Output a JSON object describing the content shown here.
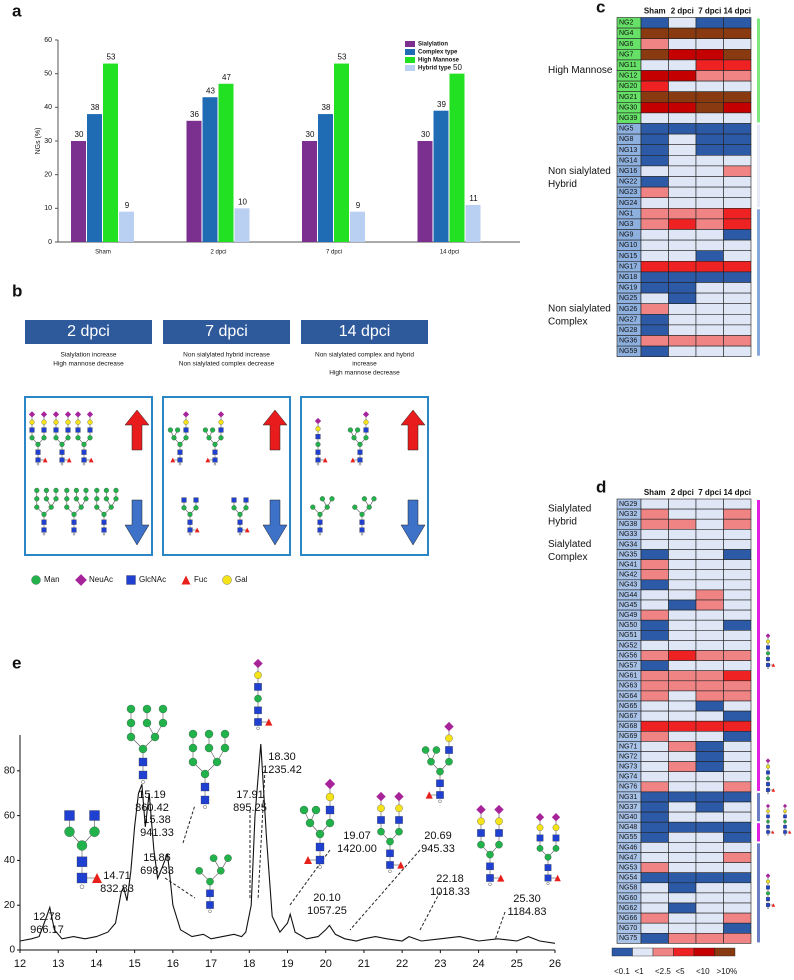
{
  "panel_labels": [
    "a",
    "b",
    "c",
    "d",
    "e"
  ],
  "chart_data": [
    {
      "type": "bar",
      "y_label": "NGs (%)",
      "categories": [
        "Sham",
        "2 dpci",
        "7 dpci",
        "14 dpci"
      ],
      "series": [
        {
          "name": "Sialylation",
          "color": "#7b2f8f",
          "values": [
            30,
            36,
            30,
            30
          ]
        },
        {
          "name": "Complex type",
          "color": "#1f6cb4",
          "values": [
            38,
            43,
            38,
            39
          ]
        },
        {
          "name": "High Mannose",
          "color": "#22e022",
          "values": [
            53,
            47,
            53,
            50
          ]
        },
        {
          "name": "Hybrid type",
          "color": "#b9d0f2",
          "values": [
            9,
            10,
            9,
            11
          ]
        }
      ],
      "ylim": [
        0,
        60
      ],
      "yticks": [
        0,
        10,
        20,
        30,
        40,
        50,
        60
      ]
    },
    {
      "type": "line",
      "color": "#111111",
      "x": [
        12.0,
        12.3,
        12.5,
        12.7,
        12.78,
        12.9,
        13.1,
        13.4,
        13.7,
        14.0,
        14.3,
        14.5,
        14.65,
        14.71,
        14.8,
        14.9,
        15.0,
        15.1,
        15.19,
        15.28,
        15.38,
        15.5,
        15.6,
        15.7,
        15.86,
        16.0,
        16.2,
        16.5,
        16.8,
        17.0,
        17.3,
        17.6,
        17.8,
        17.91,
        18.05,
        18.15,
        18.3,
        18.45,
        18.6,
        18.8,
        19.0,
        19.07,
        19.2,
        19.5,
        19.8,
        20.0,
        20.1,
        20.25,
        20.5,
        20.8,
        21.0,
        21.3,
        21.6,
        22.0,
        22.18,
        22.5,
        23.0,
        23.5,
        24.0,
        24.5,
        25.0,
        25.3,
        25.6,
        26.0
      ],
      "values": [
        4,
        5,
        6,
        15,
        19,
        9,
        5,
        6,
        5,
        6,
        8,
        12,
        26,
        28,
        22,
        35,
        55,
        70,
        74,
        55,
        70,
        45,
        32,
        36,
        43,
        20,
        9,
        6,
        7,
        5,
        6,
        7,
        6,
        8,
        20,
        60,
        92,
        50,
        15,
        8,
        12,
        16,
        8,
        5,
        6,
        9,
        11,
        7,
        5,
        4,
        5,
        6,
        5,
        4,
        6,
        4,
        5,
        6,
        4,
        5,
        4,
        6,
        4,
        3
      ],
      "xlim": [
        12,
        26
      ],
      "xticks": [
        12,
        13,
        14,
        15,
        16,
        17,
        18,
        19,
        20,
        21,
        22,
        23,
        24,
        25,
        26
      ],
      "ylim": [
        0,
        96
      ],
      "yticks": [
        0,
        20,
        40,
        60,
        80
      ],
      "annotations": [
        {
          "rt": "12.78",
          "mz": "966.17"
        },
        {
          "rt": "14.71",
          "mz": "832.83"
        },
        {
          "rt": "15.19",
          "mz": "860.42"
        },
        {
          "rt": "15.38",
          "mz": "941.33"
        },
        {
          "rt": "15.86",
          "mz": "698.33"
        },
        {
          "rt": "17.91",
          "mz": "895.25"
        },
        {
          "rt": "18.30",
          "mz": "1235.42"
        },
        {
          "rt": "19.07",
          "mz": "1420.00"
        },
        {
          "rt": "20.10",
          "mz": "1057.25"
        },
        {
          "rt": "20.69",
          "mz": "945.33"
        },
        {
          "rt": "22.18",
          "mz": "1018.33"
        },
        {
          "rt": "25.30",
          "mz": "1184.83"
        }
      ]
    }
  ],
  "diagram_b": {
    "boxes": [
      {
        "title": "2 dpci",
        "lines": [
          "Sialylation increase",
          "High mannose decrease"
        ]
      },
      {
        "title": "7 dpci",
        "lines": [
          "Non sialylated hybrid increase",
          "Non sialylated complex decrease"
        ]
      },
      {
        "title": "14 dpci",
        "lines": [
          "Non sialylated complex and hybrid",
          "increase",
          "High mannose decrease"
        ]
      }
    ],
    "legend": [
      "Man",
      "NeuAc",
      "GlcNAc",
      "Fuc",
      "Gal"
    ]
  },
  "heat_legend": [
    {
      "label": "<0.1",
      "color": "#2c5aa6"
    },
    {
      "label": "<1",
      "color": "#dfe6f5"
    },
    {
      "label": "<2.5",
      "color": "#f08484"
    },
    {
      "label": "<5",
      "color": "#ee2222"
    },
    {
      "label": "<10",
      "color": "#c40000"
    },
    {
      "label": ">10%",
      "color": "#8a3a10"
    }
  ],
  "heatmap_c": {
    "columns": [
      "Sham",
      "2 dpci",
      "7 dpci",
      "14 dpci"
    ],
    "groups": [
      {
        "label": [
          "High Mannose"
        ],
        "name_color": "#66e066",
        "rows": [
          {
            "name": "NG2",
            "levels": [
              0,
              1,
              0,
              0
            ]
          },
          {
            "name": "NG4",
            "levels": [
              5,
              5,
              5,
              5
            ]
          },
          {
            "name": "NG6",
            "levels": [
              2,
              1,
              1,
              1
            ]
          },
          {
            "name": "NG7",
            "levels": [
              5,
              4,
              4,
              5
            ]
          },
          {
            "name": "NG11",
            "levels": [
              1,
              1,
              3,
              3
            ]
          },
          {
            "name": "NG12",
            "levels": [
              4,
              4,
              2,
              2
            ]
          },
          {
            "name": "NG20",
            "levels": [
              3,
              1,
              1,
              1
            ]
          },
          {
            "name": "NG21",
            "levels": [
              5,
              5,
              5,
              5
            ]
          },
          {
            "name": "NG30",
            "levels": [
              4,
              4,
              5,
              4
            ]
          },
          {
            "name": "NG39",
            "levels": [
              1,
              1,
              1,
              1
            ]
          }
        ]
      },
      {
        "label": [
          "Non sialylated",
          "Hybrid"
        ],
        "name_color": "#8eb0de",
        "rows": [
          {
            "name": "NG5",
            "levels": [
              0,
              0,
              0,
              0
            ]
          },
          {
            "name": "NG8",
            "levels": [
              0,
              1,
              0,
              0
            ]
          },
          {
            "name": "NG13",
            "levels": [
              0,
              1,
              0,
              0
            ]
          },
          {
            "name": "NG14",
            "levels": [
              0,
              1,
              1,
              1
            ]
          },
          {
            "name": "NG16",
            "levels": [
              1,
              1,
              1,
              2
            ]
          },
          {
            "name": "NG22",
            "levels": [
              0,
              1,
              1,
              1
            ]
          },
          {
            "name": "NG23",
            "levels": [
              2,
              1,
              1,
              1
            ]
          },
          {
            "name": "NG24",
            "levels": [
              1,
              1,
              1,
              1
            ]
          }
        ]
      },
      {
        "label": [
          "Non sialylated",
          "Complex"
        ],
        "name_color": "#8eb0de",
        "rows": [
          {
            "name": "NG1",
            "levels": [
              2,
              2,
              2,
              3
            ]
          },
          {
            "name": "NG3",
            "levels": [
              2,
              3,
              2,
              3
            ]
          },
          {
            "name": "NG9",
            "levels": [
              1,
              1,
              1,
              0
            ]
          },
          {
            "name": "NG10",
            "levels": [
              1,
              1,
              1,
              1
            ]
          },
          {
            "name": "NG15",
            "levels": [
              1,
              1,
              0,
              1
            ]
          },
          {
            "name": "NG17",
            "levels": [
              3,
              3,
              3,
              3
            ]
          },
          {
            "name": "NG18",
            "levels": [
              0,
              0,
              0,
              0
            ]
          },
          {
            "name": "NG19",
            "levels": [
              0,
              0,
              1,
              1
            ]
          },
          {
            "name": "NG25",
            "levels": [
              1,
              0,
              1,
              1
            ]
          },
          {
            "name": "NG26",
            "levels": [
              2,
              1,
              1,
              1
            ]
          },
          {
            "name": "NG27",
            "levels": [
              0,
              1,
              1,
              1
            ]
          },
          {
            "name": "NG28",
            "levels": [
              0,
              1,
              1,
              1
            ]
          },
          {
            "name": "NG36",
            "levels": [
              2,
              2,
              2,
              2
            ]
          },
          {
            "name": "NG59",
            "levels": [
              0,
              1,
              1,
              1
            ]
          }
        ]
      }
    ]
  },
  "heatmap_d": {
    "columns": [
      "Sham",
      "2 dpci",
      "7 dpci",
      "14 dpci"
    ],
    "groups": [
      {
        "label": [
          "Sialylated",
          "Hybrid"
        ],
        "name_color": "#a9c3e8",
        "rows": [
          {
            "name": "NG29",
            "levels": [
              1,
              1,
              1,
              1
            ]
          },
          {
            "name": "NG32",
            "levels": [
              2,
              1,
              1,
              2
            ]
          },
          {
            "name": "NG38",
            "levels": [
              2,
              2,
              1,
              2
            ]
          }
        ]
      },
      {
        "label": [
          "Sialylated",
          "Complex"
        ],
        "name_color": "#a9c3e8",
        "rows": [
          {
            "name": "NG33",
            "levels": [
              1,
              1,
              1,
              1
            ]
          },
          {
            "name": "NG34",
            "levels": [
              1,
              1,
              1,
              1
            ]
          },
          {
            "name": "NG35",
            "levels": [
              0,
              1,
              1,
              0
            ]
          },
          {
            "name": "NG41",
            "levels": [
              2,
              1,
              1,
              1
            ]
          },
          {
            "name": "NG42",
            "levels": [
              2,
              1,
              1,
              1
            ]
          },
          {
            "name": "NG43",
            "levels": [
              0,
              1,
              1,
              1
            ]
          },
          {
            "name": "NG44",
            "levels": [
              1,
              1,
              2,
              1
            ]
          },
          {
            "name": "NG45",
            "levels": [
              1,
              0,
              2,
              1
            ]
          },
          {
            "name": "NG49",
            "levels": [
              2,
              1,
              1,
              1
            ]
          },
          {
            "name": "NG50",
            "levels": [
              0,
              1,
              1,
              0
            ]
          },
          {
            "name": "NG51",
            "levels": [
              0,
              1,
              1,
              1
            ]
          },
          {
            "name": "NG52",
            "levels": [
              1,
              1,
              1,
              1
            ]
          },
          {
            "name": "NG56",
            "levels": [
              2,
              3,
              2,
              2
            ]
          },
          {
            "name": "NG57",
            "levels": [
              0,
              1,
              1,
              1
            ]
          },
          {
            "name": "NG61",
            "levels": [
              2,
              2,
              2,
              3
            ]
          },
          {
            "name": "NG63",
            "levels": [
              2,
              2,
              2,
              2
            ]
          },
          {
            "name": "NG64",
            "levels": [
              2,
              1,
              2,
              2
            ]
          },
          {
            "name": "NG65",
            "levels": [
              1,
              1,
              0,
              1
            ]
          },
          {
            "name": "NG67",
            "levels": [
              1,
              1,
              1,
              0
            ]
          },
          {
            "name": "NG68",
            "levels": [
              3,
              3,
              3,
              3
            ]
          },
          {
            "name": "NG69",
            "levels": [
              2,
              1,
              1,
              0
            ]
          },
          {
            "name": "NG71",
            "levels": [
              1,
              2,
              0,
              1
            ]
          },
          {
            "name": "NG72",
            "levels": [
              1,
              1,
              0,
              1
            ]
          },
          {
            "name": "NG73",
            "levels": [
              1,
              2,
              0,
              1
            ]
          },
          {
            "name": "NG74",
            "levels": [
              1,
              1,
              1,
              1
            ]
          },
          {
            "name": "NG76",
            "levels": [
              2,
              1,
              1,
              2
            ]
          },
          {
            "name": "NG31",
            "levels": [
              0,
              0,
              0,
              0
            ]
          },
          {
            "name": "NG37",
            "levels": [
              0,
              1,
              0,
              1
            ]
          },
          {
            "name": "NG40",
            "levels": [
              0,
              1,
              1,
              1
            ]
          },
          {
            "name": "NG48",
            "levels": [
              0,
              0,
              0,
              0
            ]
          },
          {
            "name": "NG55",
            "levels": [
              0,
              1,
              1,
              0
            ]
          },
          {
            "name": "NG46",
            "levels": [
              1,
              1,
              1,
              1
            ]
          },
          {
            "name": "NG47",
            "levels": [
              1,
              1,
              1,
              2
            ]
          },
          {
            "name": "NG53",
            "levels": [
              2,
              1,
              1,
              1
            ]
          },
          {
            "name": "NG54",
            "levels": [
              0,
              0,
              0,
              0
            ]
          },
          {
            "name": "NG58",
            "levels": [
              1,
              0,
              1,
              1
            ]
          },
          {
            "name": "NG60",
            "levels": [
              1,
              1,
              1,
              1
            ]
          },
          {
            "name": "NG62",
            "levels": [
              1,
              0,
              1,
              1
            ]
          },
          {
            "name": "NG66",
            "levels": [
              2,
              1,
              1,
              2
            ]
          },
          {
            "name": "NG70",
            "levels": [
              1,
              1,
              1,
              0
            ]
          },
          {
            "name": "NG75",
            "levels": [
              0,
              2,
              2,
              2
            ]
          }
        ]
      }
    ]
  }
}
